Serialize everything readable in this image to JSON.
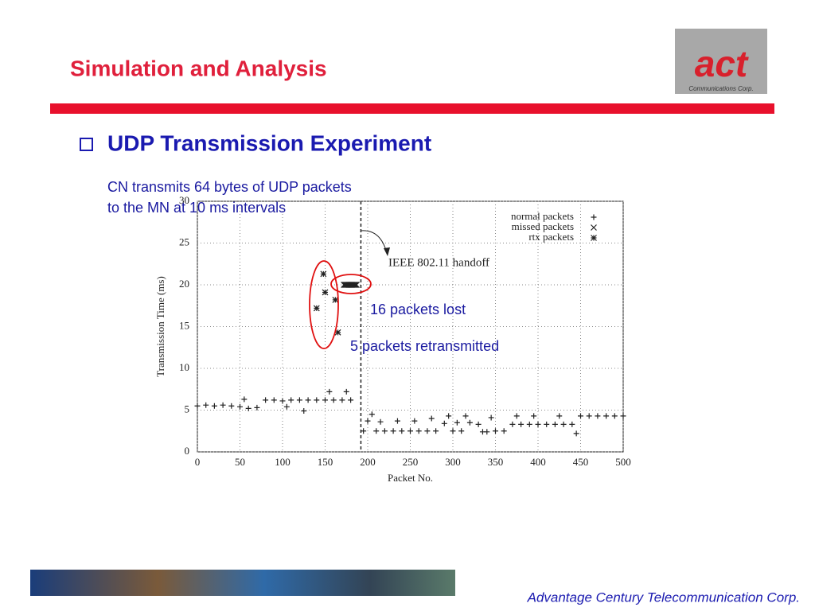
{
  "slide": {
    "title": "Simulation and Analysis",
    "heading": "UDP Transmission Experiment",
    "description": [
      "CN transmits 64 bytes of UDP packets",
      "to the MN at 10 ms intervals"
    ],
    "callouts": [
      "16 packets lost",
      "5 packets retransmitted"
    ],
    "logo": {
      "mark": "act",
      "caption": "Communications Corp."
    },
    "footer": "Advantage Century Telecommunication Corp."
  },
  "chart_data": {
    "type": "scatter",
    "xlabel": "Packet No.",
    "ylabel": "Transmission Time (ms)",
    "xlim": [
      0,
      500
    ],
    "ylim": [
      0,
      30
    ],
    "xticks": [
      0,
      50,
      100,
      150,
      200,
      250,
      300,
      350,
      400,
      450,
      500
    ],
    "yticks": [
      0,
      5,
      10,
      15,
      20,
      25,
      30
    ],
    "grid": true,
    "legend": "upper right",
    "handoff": {
      "label": "IEEE 802.11 handoff",
      "x": 192
    },
    "series": [
      {
        "name": "normal packets",
        "marker": "plus",
        "color": "#222222",
        "x": [
          0,
          10,
          20,
          30,
          40,
          50,
          55,
          60,
          70,
          80,
          90,
          100,
          105,
          110,
          120,
          125,
          130,
          140,
          150,
          155,
          160,
          170,
          175,
          180,
          195,
          200,
          205,
          210,
          215,
          220,
          230,
          235,
          240,
          250,
          255,
          260,
          270,
          275,
          280,
          290,
          295,
          300,
          305,
          310,
          315,
          320,
          330,
          335,
          340,
          345,
          350,
          360,
          370,
          375,
          380,
          390,
          395,
          400,
          410,
          420,
          425,
          430,
          440,
          445,
          450,
          460,
          470,
          480,
          490,
          500
        ],
        "values": [
          5.5,
          5.6,
          5.5,
          5.6,
          5.5,
          5.4,
          6.3,
          5.2,
          5.3,
          6.2,
          6.2,
          6.1,
          5.4,
          6.2,
          6.2,
          4.9,
          6.2,
          6.2,
          6.2,
          7.2,
          6.2,
          6.2,
          7.2,
          6.2,
          2.5,
          3.7,
          4.5,
          2.5,
          3.6,
          2.5,
          2.5,
          3.7,
          2.5,
          2.5,
          3.7,
          2.5,
          2.5,
          4.0,
          2.5,
          3.4,
          4.3,
          2.5,
          3.5,
          2.5,
          4.3,
          3.5,
          3.3,
          2.4,
          2.4,
          4.1,
          2.5,
          2.5,
          3.3,
          4.3,
          3.3,
          3.3,
          4.3,
          3.3,
          3.3,
          3.3,
          4.3,
          3.3,
          3.3,
          2.2,
          4.3,
          4.3,
          4.3,
          4.3,
          4.3,
          4.3
        ]
      },
      {
        "name": "missed packets",
        "marker": "cross",
        "color": "#222222",
        "x": [
          172,
          173,
          174,
          175,
          176,
          177,
          178,
          179,
          180,
          181,
          182,
          183,
          184,
          185,
          186,
          187
        ],
        "values": [
          20,
          20,
          20,
          20,
          20,
          20,
          20,
          20,
          20,
          20,
          20,
          20,
          20,
          20,
          20,
          20
        ]
      },
      {
        "name": "rtx packets",
        "marker": "star",
        "color": "#222222",
        "x": [
          140,
          148,
          150,
          162,
          165
        ],
        "values": [
          17.2,
          21.3,
          19.1,
          18.2,
          14.3
        ]
      }
    ]
  }
}
